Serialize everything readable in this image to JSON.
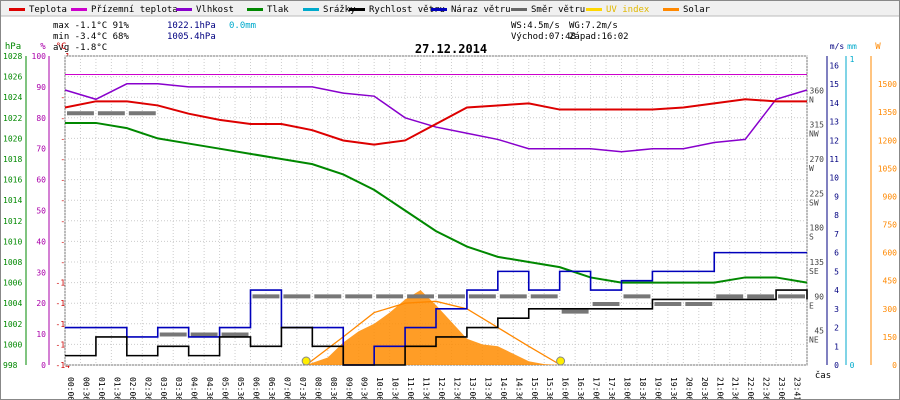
{
  "chart_data": {
    "type": "line",
    "title": "27.12.2014",
    "legend": [
      {
        "label": "Teplota",
        "color": "#dd0000"
      },
      {
        "label": "Přízemní teplota",
        "color": "#cc00cc"
      },
      {
        "label": "Vlhkost",
        "color": "#8800cc"
      },
      {
        "label": "Tlak",
        "color": "#008800"
      },
      {
        "label": "Srážky",
        "color": "#00aacc"
      },
      {
        "label": "Rychlost větru",
        "color": "#000000"
      },
      {
        "label": "Náraz větru",
        "color": "#0000bb"
      },
      {
        "label": "Směr větru",
        "color": "#666666"
      },
      {
        "label": "UV index",
        "color": "#ffd700"
      },
      {
        "label": "Solar",
        "color": "#ff8800"
      }
    ],
    "stats": {
      "max": {
        "label": "max",
        "temp": "-1.1°C",
        "hum": "91%",
        "press": "1022.1hPa",
        "rain": "0.0mm"
      },
      "min": {
        "label": "min",
        "temp": "-3.4°C",
        "hum": "68%",
        "press": "1005.4hPa"
      },
      "avg": {
        "label": "avg",
        "temp": "-1.8°C"
      }
    },
    "wind_info": {
      "ws": "WS:4.5m/s",
      "wg": "WG:7.2m/s",
      "sunrise": "Východ:07:48",
      "sunset": "Západ:16:02"
    },
    "axes": {
      "hpa": {
        "label": "hPa",
        "ticks": [
          "998",
          "1000",
          "1002",
          "1004",
          "1006",
          "1008",
          "1010",
          "1012",
          "1014",
          "1016",
          "1018",
          "1020",
          "1022",
          "1024",
          "1026",
          "1028"
        ]
      },
      "pct": {
        "label": "%",
        "ticks": [
          "0",
          "10",
          "20",
          "30",
          "40",
          "50",
          "60",
          "70",
          "80",
          "90",
          "100"
        ]
      },
      "celsius": {
        "label": "°C",
        "ticks": [
          "-14",
          "-13",
          "-12",
          "-11",
          "-10",
          "-9",
          "-8",
          "-7",
          "-6",
          "-5",
          "-4",
          "-3",
          "-2",
          "-1",
          "0",
          "1"
        ]
      },
      "direction": {
        "ticks": [
          {
            "deg": "45",
            "dir": "NE",
            "y": 45
          },
          {
            "deg": "90",
            "dir": "E",
            "y": 90
          },
          {
            "deg": "135",
            "dir": "SE",
            "y": 135
          },
          {
            "deg": "180",
            "dir": "S",
            "y": 180
          },
          {
            "deg": "225",
            "dir": "SW",
            "y": 225
          },
          {
            "deg": "270",
            "dir": "W",
            "y": 270
          },
          {
            "deg": "315",
            "dir": "NW",
            "y": 315
          },
          {
            "deg": "360",
            "dir": "N",
            "y": 360
          }
        ]
      },
      "ms": {
        "label": "m/s",
        "ticks": [
          "0",
          "1",
          "2",
          "3",
          "4",
          "5",
          "6",
          "7",
          "8",
          "9",
          "10",
          "11",
          "12",
          "13",
          "14",
          "15",
          "16"
        ]
      },
      "mm": {
        "label": "mm",
        "ticks": [
          "0",
          "1"
        ]
      },
      "w": {
        "label": "W",
        "ticks": [
          "0",
          "150",
          "300",
          "450",
          "600",
          "750",
          "900",
          "1050",
          "1200",
          "1350",
          "1500"
        ]
      },
      "x_label": "čas",
      "time_ticks": [
        "00:06",
        "00:36",
        "01:06",
        "01:36",
        "02:06",
        "02:36",
        "03:06",
        "03:36",
        "04:06",
        "04:36",
        "05:06",
        "05:36",
        "06:06",
        "06:36",
        "07:06",
        "07:36",
        "08:06",
        "08:36",
        "09:06",
        "09:36",
        "10:06",
        "10:36",
        "11:06",
        "11:36",
        "12:06",
        "12:36",
        "13:06",
        "13:36",
        "14:06",
        "14:36",
        "15:06",
        "15:36",
        "16:06",
        "16:36",
        "17:06",
        "17:36",
        "18:06",
        "18:36",
        "19:06",
        "19:36",
        "20:06",
        "20:36",
        "21:06",
        "21:36",
        "22:06",
        "22:36",
        "23:06",
        "23:41"
      ]
    },
    "series": {
      "teplota": {
        "unit": "°C",
        "x": [
          0,
          1,
          2,
          3,
          4,
          5,
          6,
          7,
          8,
          9,
          10,
          11,
          12,
          13,
          14,
          15,
          16,
          17,
          18,
          19,
          20,
          21,
          22,
          23,
          24
        ],
        "y": [
          -1.5,
          -1.2,
          -1.2,
          -1.4,
          -1.8,
          -2.1,
          -2.3,
          -2.3,
          -2.6,
          -3.1,
          -3.3,
          -3.1,
          -2.3,
          -1.5,
          -1.4,
          -1.3,
          -1.6,
          -1.6,
          -1.6,
          -1.6,
          -1.5,
          -1.3,
          -1.1,
          -1.2,
          -1.2
        ]
      },
      "prizemni_teplota": {
        "unit": "°C",
        "x": [
          0,
          24
        ],
        "y": [
          0.1,
          0.1
        ]
      },
      "vlhkost": {
        "unit": "%",
        "x": [
          0,
          1,
          2,
          3,
          4,
          5,
          6,
          7,
          8,
          9,
          10,
          11,
          12,
          13,
          14,
          15,
          16,
          17,
          18,
          19,
          20,
          21,
          22,
          23,
          24
        ],
        "y": [
          89,
          86,
          91,
          91,
          90,
          90,
          90,
          90,
          90,
          88,
          87,
          80,
          77,
          75,
          73,
          70,
          70,
          70,
          69,
          70,
          70,
          72,
          73,
          86,
          89
        ]
      },
      "tlak": {
        "unit": "hPa",
        "x": [
          0,
          1,
          2,
          3,
          4,
          5,
          6,
          7,
          8,
          9,
          10,
          11,
          12,
          13,
          14,
          15,
          16,
          17,
          18,
          19,
          20,
          21,
          22,
          23,
          24
        ],
        "y": [
          1021.5,
          1021.5,
          1021,
          1020,
          1019.5,
          1019,
          1018.5,
          1018,
          1017.5,
          1016.5,
          1015,
          1013,
          1011,
          1009.5,
          1008.5,
          1008,
          1007.5,
          1006.5,
          1006,
          1006,
          1006,
          1006,
          1006.5,
          1006.5,
          1006
        ]
      },
      "rychlost_vetru": {
        "unit": "m/s",
        "x": [
          0,
          1,
          2,
          3,
          4,
          5,
          6,
          7,
          8,
          9,
          10,
          11,
          12,
          13,
          14,
          15,
          16,
          17,
          18,
          19,
          20,
          21,
          22,
          23,
          24
        ],
        "y": [
          0.5,
          1.5,
          0.5,
          1,
          0.5,
          1.5,
          1,
          2,
          1,
          0,
          0,
          1,
          1.5,
          2,
          2.5,
          3,
          3,
          3,
          3,
          3.5,
          3.5,
          3.5,
          3.5,
          4,
          3.5
        ]
      },
      "naraz_vetru": {
        "unit": "m/s",
        "x": [
          0,
          1,
          2,
          3,
          4,
          5,
          6,
          7,
          8,
          9,
          10,
          11,
          12,
          13,
          14,
          15,
          16,
          17,
          18,
          19,
          20,
          21,
          22,
          23,
          24
        ],
        "y": [
          2,
          2,
          1.5,
          2,
          1.5,
          2,
          4,
          2,
          2,
          0,
          1,
          2,
          3,
          4,
          5,
          4,
          5,
          4,
          4.5,
          5,
          5,
          6,
          6,
          6,
          6
        ]
      },
      "smer_vetru": {
        "unit": "°",
        "x": [
          0,
          1,
          2,
          3,
          4,
          5,
          6,
          7,
          8,
          9,
          10,
          11,
          12,
          13,
          14,
          15,
          16,
          17,
          18,
          19,
          20,
          21,
          22,
          23,
          24
        ],
        "y": [
          330,
          330,
          330,
          40,
          40,
          40,
          90,
          90,
          90,
          90,
          90,
          90,
          90,
          90,
          90,
          90,
          70,
          80,
          90,
          80,
          80,
          90,
          90,
          90,
          90
        ]
      },
      "solar": {
        "unit": "W",
        "x": [
          7.8,
          8.5,
          9,
          9.5,
          10,
          10.5,
          11,
          11.5,
          12,
          12.5,
          13,
          13.5,
          14,
          14.5,
          15,
          15.5,
          16.03
        ],
        "y": [
          0,
          40,
          120,
          180,
          220,
          280,
          350,
          400,
          320,
          230,
          140,
          110,
          100,
          60,
          20,
          5,
          0
        ]
      },
      "solar_theoretical": {
        "unit": "W",
        "x": [
          7.8,
          9,
          10,
          11,
          12,
          13,
          14,
          15,
          16.03
        ],
        "y": [
          0,
          150,
          280,
          330,
          340,
          300,
          200,
          100,
          0
        ]
      }
    }
  }
}
